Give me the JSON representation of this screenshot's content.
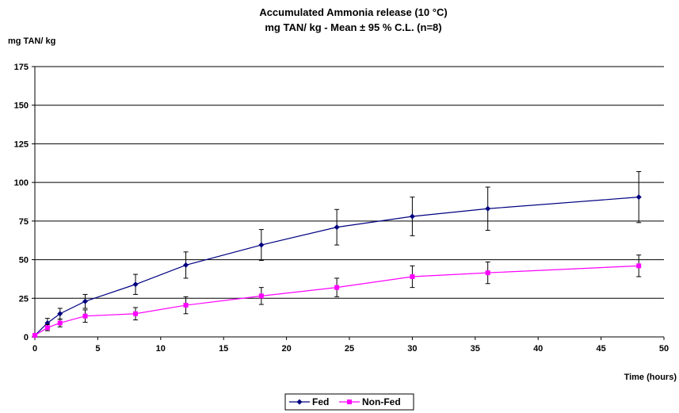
{
  "chart_data": {
    "type": "line",
    "title": "Accumulated Ammonia release (10 °C)",
    "subtitle": "mg TAN/ kg - Mean ± 95 % C.L. (n=8)",
    "xlabel": "Time (hours)",
    "ylabel": "mg TAN/ kg",
    "xlim": [
      0,
      50
    ],
    "ylim": [
      0,
      175
    ],
    "xticks": [
      0,
      5,
      10,
      15,
      20,
      25,
      30,
      35,
      40,
      45,
      50
    ],
    "yticks": [
      0,
      25,
      50,
      75,
      100,
      125,
      150,
      175
    ],
    "grid": "horizontal",
    "legend_position": "bottom",
    "series": [
      {
        "name": "Fed",
        "color": "#000080",
        "marker": "diamond",
        "x": [
          0,
          1,
          2,
          4,
          8,
          12,
          18,
          24,
          30,
          36,
          48
        ],
        "y": [
          1,
          9,
          15,
          23,
          34,
          46.5,
          59.5,
          71,
          78,
          83,
          90.5
        ],
        "err": [
          1,
          3,
          3.5,
          4.5,
          6.5,
          8.5,
          10,
          11.5,
          12.5,
          14,
          16.5
        ]
      },
      {
        "name": "Non-Fed",
        "color": "#ff00ff",
        "marker": "square",
        "x": [
          0,
          1,
          2,
          4,
          8,
          12,
          18,
          24,
          30,
          36,
          48
        ],
        "y": [
          1,
          6,
          9,
          13.5,
          15,
          20.5,
          26.5,
          32,
          39,
          41.5,
          46
        ],
        "err": [
          1,
          2,
          2.5,
          4,
          4,
          5.5,
          5.5,
          6,
          7,
          7,
          7
        ]
      }
    ]
  }
}
